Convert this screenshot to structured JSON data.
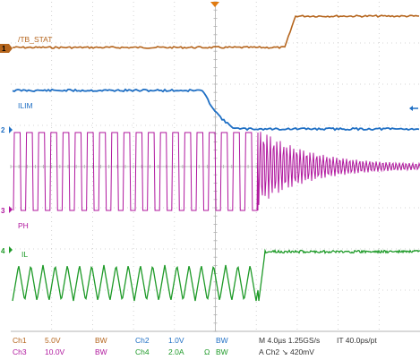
{
  "scope": {
    "trace_labels": {
      "tb_stat": "/TB_STAT",
      "ilim": "ILIM",
      "ph": "PH",
      "il": "IL"
    },
    "markers": [
      "1",
      "2",
      "3",
      "4"
    ],
    "readout": {
      "ch1": {
        "name": "Ch1",
        "scale": "5.0V",
        "bw": "BW"
      },
      "ch2": {
        "name": "Ch2",
        "scale": "1.0V",
        "bw": "BW"
      },
      "ch3": {
        "name": "Ch3",
        "scale": "10.0V",
        "bw": "BW"
      },
      "ch4": {
        "name": "Ch4",
        "scale": "2.0A",
        "ohm": "Ω",
        "bw": "BW"
      },
      "timebase": "M 4.0µs 1.25GS/s",
      "record": "IT 40.0ps/pt",
      "trigger": "A  Ch2  ↘ 420mV"
    },
    "colors": {
      "ch1": "#b5651d",
      "ch2": "#1f6fc4",
      "ch3": "#b0179e",
      "ch4": "#1e9a28",
      "grid": "#bdbdbd",
      "trigger_marker": "#e07a10"
    }
  }
}
